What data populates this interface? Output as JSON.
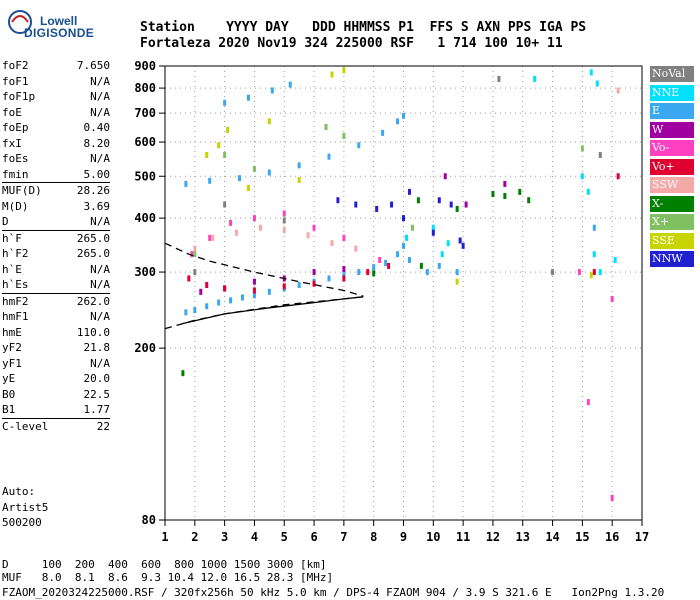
{
  "logo": {
    "line1": "Lowell",
    "line2": "DIGISONDE"
  },
  "header": {
    "line1": "Station    YYYY DAY   DDD HHMMSS P1  FFS S AXN PPS IGA PS",
    "line2": "Fortaleza 2020 Nov19 324 225000 RSF   1 714 100 10+ 11"
  },
  "params": [
    {
      "label": "foF2",
      "value": "7.650"
    },
    {
      "label": "foF1",
      "value": "N/A"
    },
    {
      "label": "foF1p",
      "value": "N/A"
    },
    {
      "label": "foE",
      "value": "N/A"
    },
    {
      "label": "foEp",
      "value": "0.40"
    },
    {
      "label": "fxI",
      "value": "8.20"
    },
    {
      "label": "foEs",
      "value": "N/A"
    },
    {
      "label": "fmin",
      "value": "5.00"
    },
    {
      "label": "MUF(D)",
      "value": "28.26"
    },
    {
      "label": "M(D)",
      "value": "3.69"
    },
    {
      "label": "D",
      "value": "N/A"
    },
    {
      "label": "h`F",
      "value": "265.0"
    },
    {
      "label": "h`F2",
      "value": "265.0"
    },
    {
      "label": "h`E",
      "value": "N/A"
    },
    {
      "label": "h`Es",
      "value": "N/A"
    },
    {
      "label": "hmF2",
      "value": "262.0"
    },
    {
      "label": "hmF1",
      "value": "N/A"
    },
    {
      "label": "hmE",
      "value": "110.0"
    },
    {
      "label": "yF2",
      "value": "21.8"
    },
    {
      "label": "yF1",
      "value": "N/A"
    },
    {
      "label": "yE",
      "value": "20.0"
    },
    {
      "label": "B0",
      "value": "22.5"
    },
    {
      "label": "B1",
      "value": "1.77"
    },
    {
      "label": "C-level",
      "value": "22"
    }
  ],
  "auto": {
    "line1": "Auto:",
    "line2": "Artist5",
    "line3": "500200"
  },
  "bottom": {
    "d_line": "D     100  200  400  600  800 1000 1500 3000 [km]",
    "muf_line": "MUF   8.0  8.1  8.6  9.3 10.4 12.0 16.5 28.3 [MHz]",
    "footer": "FZAOM_2020324225000.RSF / 320fx256h 50 kHz 5.0 km / DPS-4 FZAOM 904 / 3.9 S 321.6 E   Ion2Png 1.3.20"
  },
  "legend": [
    {
      "label": "NoVal",
      "color": "#808080"
    },
    {
      "label": "NNE",
      "color": "#00e0ff"
    },
    {
      "label": "E",
      "color": "#3aa8f0"
    },
    {
      "label": "W",
      "color": "#a000a0"
    },
    {
      "label": "Vo-",
      "color": "#ff40c0"
    },
    {
      "label": "Vo+",
      "color": "#e00030"
    },
    {
      "label": "SSW",
      "color": "#f5a8a8"
    },
    {
      "label": "X-",
      "color": "#008000"
    },
    {
      "label": "X+",
      "color": "#80c060"
    },
    {
      "label": "SSE",
      "color": "#c8d400"
    },
    {
      "label": "NNW",
      "color": "#2020d0"
    }
  ],
  "chart_data": {
    "type": "scatter",
    "xlabel": "",
    "ylabel": "",
    "x_range": [
      1,
      17
    ],
    "x_ticks": [
      "1",
      "2",
      "3",
      "4",
      "5",
      "6",
      "7",
      "8",
      "9",
      "10",
      "11",
      "12",
      "13",
      "14",
      "15",
      "16",
      "17"
    ],
    "y_range": [
      80,
      900
    ],
    "y_scale": "log",
    "y_ticks": [
      "80",
      "200",
      "300",
      "400",
      "500",
      "600",
      "700",
      "800",
      "900"
    ],
    "grid": true,
    "series": [
      {
        "name": "NNE",
        "points": [
          [
            10.3,
            330
          ],
          [
            10.5,
            350
          ],
          [
            15.4,
            330
          ],
          [
            15.6,
            300
          ],
          [
            16.1,
            320
          ],
          [
            15.3,
            870
          ],
          [
            15.5,
            820
          ],
          [
            13.4,
            840
          ],
          [
            15.0,
            500
          ],
          [
            15.2,
            460
          ],
          [
            9.1,
            360
          ],
          [
            10.0,
            380
          ]
        ]
      },
      {
        "name": "E",
        "points": [
          [
            1.7,
            242
          ],
          [
            2.0,
            245
          ],
          [
            2.4,
            250
          ],
          [
            2.8,
            255
          ],
          [
            3.2,
            258
          ],
          [
            3.6,
            262
          ],
          [
            4.0,
            265
          ],
          [
            4.5,
            270
          ],
          [
            5.0,
            275
          ],
          [
            5.5,
            280
          ],
          [
            6.0,
            285
          ],
          [
            6.5,
            290
          ],
          [
            7.0,
            295
          ],
          [
            7.5,
            300
          ],
          [
            8.0,
            308
          ],
          [
            8.4,
            315
          ],
          [
            8.8,
            330
          ],
          [
            9.0,
            345
          ],
          [
            1.7,
            480
          ],
          [
            2.5,
            488
          ],
          [
            3.5,
            495
          ],
          [
            4.5,
            510
          ],
          [
            5.5,
            530
          ],
          [
            6.5,
            555
          ],
          [
            7.5,
            590
          ],
          [
            8.3,
            630
          ],
          [
            8.8,
            670
          ],
          [
            9.0,
            690
          ],
          [
            3.0,
            740
          ],
          [
            3.8,
            760
          ],
          [
            4.6,
            790
          ],
          [
            5.2,
            815
          ],
          [
            9.2,
            320
          ],
          [
            9.8,
            300
          ],
          [
            10.2,
            310
          ],
          [
            10.8,
            300
          ],
          [
            15.4,
            380
          ]
        ]
      },
      {
        "name": "W",
        "points": [
          [
            2.2,
            270
          ],
          [
            3.0,
            275
          ],
          [
            4.0,
            285
          ],
          [
            5.0,
            290
          ],
          [
            6.0,
            300
          ],
          [
            7.0,
            305
          ],
          [
            10.4,
            500
          ],
          [
            11.1,
            430
          ],
          [
            12.4,
            480
          ]
        ]
      },
      {
        "name": "Vo-",
        "points": [
          [
            1.9,
            330
          ],
          [
            2.5,
            360
          ],
          [
            3.2,
            390
          ],
          [
            4.0,
            400
          ],
          [
            5.0,
            410
          ],
          [
            6.0,
            380
          ],
          [
            7.0,
            360
          ],
          [
            8.2,
            320
          ],
          [
            14.9,
            300
          ],
          [
            16.0,
            260
          ],
          [
            15.2,
            150
          ],
          [
            16.0,
            90
          ]
        ]
      },
      {
        "name": "Vo+",
        "points": [
          [
            1.8,
            290
          ],
          [
            2.4,
            280
          ],
          [
            3.0,
            275
          ],
          [
            4.0,
            272
          ],
          [
            5.0,
            278
          ],
          [
            6.0,
            282
          ],
          [
            7.0,
            290
          ],
          [
            7.8,
            300
          ],
          [
            8.5,
            310
          ],
          [
            15.4,
            300
          ],
          [
            16.2,
            500
          ]
        ]
      },
      {
        "name": "SSW",
        "points": [
          [
            2.0,
            340
          ],
          [
            2.6,
            360
          ],
          [
            3.4,
            370
          ],
          [
            4.2,
            380
          ],
          [
            5.0,
            375
          ],
          [
            5.8,
            365
          ],
          [
            6.6,
            350
          ],
          [
            7.4,
            340
          ],
          [
            16.2,
            790
          ]
        ]
      },
      {
        "name": "X-",
        "points": [
          [
            9.5,
            440
          ],
          [
            10.8,
            420
          ],
          [
            12.0,
            455
          ],
          [
            12.4,
            450
          ],
          [
            12.9,
            460
          ],
          [
            13.2,
            440
          ],
          [
            1.6,
            175
          ],
          [
            9.6,
            310
          ],
          [
            8.0,
            298
          ]
        ]
      },
      {
        "name": "X+",
        "points": [
          [
            2.0,
            330
          ],
          [
            3.0,
            560
          ],
          [
            4.0,
            520
          ],
          [
            6.4,
            650
          ],
          [
            7.0,
            620
          ],
          [
            9.3,
            380
          ],
          [
            15.0,
            580
          ]
        ]
      },
      {
        "name": "SSE",
        "points": [
          [
            2.4,
            560
          ],
          [
            2.8,
            590
          ],
          [
            3.1,
            640
          ],
          [
            4.5,
            670
          ],
          [
            6.6,
            860
          ],
          [
            7.0,
            880
          ],
          [
            5.5,
            490
          ],
          [
            3.8,
            470
          ],
          [
            10.8,
            285
          ],
          [
            15.3,
            295
          ]
        ]
      },
      {
        "name": "NNW",
        "points": [
          [
            6.8,
            440
          ],
          [
            7.4,
            430
          ],
          [
            8.1,
            420
          ],
          [
            8.6,
            430
          ],
          [
            9.0,
            400
          ],
          [
            9.2,
            460
          ],
          [
            10.0,
            370
          ],
          [
            10.2,
            440
          ],
          [
            10.6,
            430
          ],
          [
            10.9,
            355
          ],
          [
            11.0,
            345
          ]
        ]
      },
      {
        "name": "NoVal",
        "points": [
          [
            2.0,
            300
          ],
          [
            3.0,
            430
          ],
          [
            5.0,
            395
          ],
          [
            14.0,
            300
          ],
          [
            12.2,
            840
          ],
          [
            15.6,
            560
          ]
        ]
      }
    ],
    "curves": [
      {
        "style": "solid",
        "points": [
          [
            1.6,
            228
          ],
          [
            3.0,
            240
          ],
          [
            4.5,
            248
          ],
          [
            6.0,
            255
          ],
          [
            7.0,
            260
          ],
          [
            7.65,
            263
          ]
        ]
      },
      {
        "style": "dashed",
        "points": [
          [
            1.0,
            222
          ],
          [
            2.0,
            232
          ],
          [
            3.0,
            240
          ],
          [
            5.0,
            252
          ],
          [
            7.0,
            260
          ],
          [
            7.65,
            263
          ]
        ]
      },
      {
        "style": "dashed",
        "points": [
          [
            1.0,
            350
          ],
          [
            1.8,
            330
          ],
          [
            2.5,
            318
          ],
          [
            4.0,
            300
          ],
          [
            5.5,
            285
          ],
          [
            7.0,
            272
          ],
          [
            7.65,
            264
          ]
        ]
      }
    ]
  }
}
